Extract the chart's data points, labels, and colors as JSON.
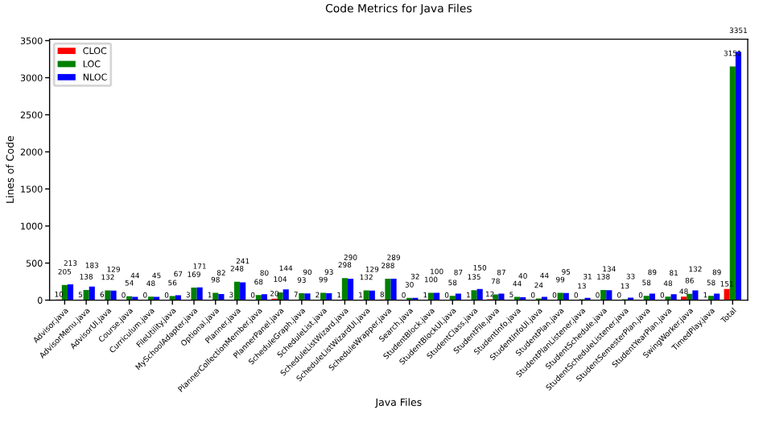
{
  "chart_data": {
    "type": "bar",
    "title": "Code Metrics for Java Files",
    "xlabel": "Java Files",
    "ylabel": "Lines of Code",
    "categories": [
      "Advisor.java",
      "AdvisorMenu.java",
      "AdvisorUI.java",
      "Course.java",
      "Curriculum.java",
      "FileUtility.java",
      "MySchoolAdapter.java",
      "Optional.java",
      "Planner.java",
      "PlannerCollectionMember.java",
      "PlannerPanel.java",
      "ScheduleGraph.java",
      "ScheduleList.java",
      "ScheduleListWizard.java",
      "ScheduleListWizardUI.java",
      "ScheduleWrapper.java",
      "Search.java",
      "StudentBlock.java",
      "StudentBlockUI.java",
      "StudentClass.java",
      "StudentFile.java",
      "StudentInfo.java",
      "StudentInfoUI.java",
      "StudentPlan.java",
      "StudentPlanListener.java",
      "StudentSchedule.java",
      "StudentScheduleListener.java",
      "StudentSemesterPlan.java",
      "StudentYearPlan.java",
      "SwingWorker.java",
      "TimedPlay.java",
      "Total"
    ],
    "series": [
      {
        "name": "CLOC",
        "color": "#ff0000",
        "values": [
          10,
          5,
          6,
          0,
          0,
          0,
          3,
          1,
          3,
          0,
          20,
          7,
          2,
          1,
          1,
          8,
          0,
          1,
          0,
          1,
          12,
          5,
          0,
          0,
          0,
          0,
          0,
          0,
          0,
          48,
          1,
          151
        ]
      },
      {
        "name": "LOC",
        "color": "#008000",
        "values": [
          205,
          138,
          132,
          54,
          48,
          56,
          169,
          98,
          248,
          68,
          104,
          93,
          99,
          298,
          132,
          288,
          30,
          100,
          58,
          135,
          78,
          44,
          24,
          99,
          13,
          138,
          13,
          58,
          48,
          86,
          58,
          3151
        ]
      },
      {
        "name": "NLOC",
        "color": "#0000ff",
        "values": [
          213,
          183,
          129,
          44,
          45,
          67,
          171,
          82,
          241,
          80,
          144,
          90,
          93,
          290,
          129,
          289,
          32,
          100,
          87,
          150,
          87,
          40,
          44,
          95,
          31,
          134,
          33,
          89,
          81,
          132,
          89,
          3351
        ]
      }
    ],
    "ylim": [
      0,
      3520
    ],
    "yticks": [
      0,
      500,
      1000,
      1500,
      2000,
      2500,
      3000,
      3500
    ],
    "grid": false,
    "legend": "top left",
    "data_labels": true
  }
}
